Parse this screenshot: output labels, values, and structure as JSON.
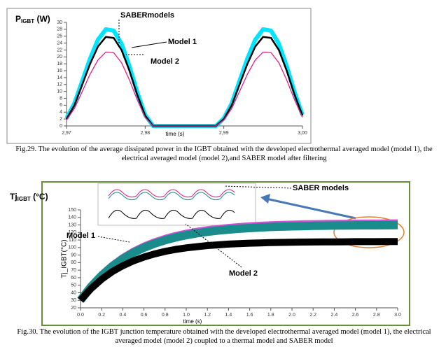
{
  "chart_data": [
    {
      "type": "line",
      "y_title": {
        "symbol": "P",
        "subscript": "IGBT",
        "unit": " (W)"
      },
      "xlabel": "time (s)",
      "x": [
        2.97,
        2.971,
        2.972,
        2.973,
        2.974,
        2.975,
        2.976,
        2.977,
        2.978,
        2.979,
        2.98,
        2.981,
        2.982,
        2.983,
        2.984,
        2.985,
        2.986,
        2.987,
        2.988,
        2.989,
        2.99,
        2.991,
        2.992,
        2.993,
        2.994,
        2.995,
        2.996,
        2.997,
        2.998,
        2.999,
        3.0
      ],
      "series": [
        {
          "name": "SABERmodels",
          "color": "#00e5ff",
          "width": 6,
          "values": [
            2.2,
            6.5,
            13,
            19.5,
            25,
            28,
            27.6,
            23.8,
            17.3,
            9.7,
            3.2,
            0,
            0,
            0,
            0,
            0,
            0,
            0,
            0,
            0,
            2.2,
            6.5,
            13,
            19.5,
            25,
            28,
            27.6,
            23.8,
            17.3,
            9.7,
            3.2
          ]
        },
        {
          "name": "Model 1",
          "color": "#000000",
          "width": 2.5,
          "values": [
            2,
            6,
            12,
            18,
            23,
            25.8,
            25.5,
            22,
            16,
            9,
            3,
            0,
            0,
            0,
            0,
            0,
            0,
            0,
            0,
            0,
            2,
            6,
            12,
            18,
            23,
            25.8,
            25.5,
            22,
            16,
            9,
            3
          ]
        },
        {
          "name": "Model 2",
          "color": "#e0218a",
          "width": 1.3,
          "values": [
            1.7,
            5,
            10,
            15,
            19.1,
            21.4,
            21.2,
            18.3,
            13.3,
            7.5,
            2.5,
            0,
            0,
            0,
            0,
            0,
            0,
            0,
            0,
            0,
            1.7,
            5,
            10,
            15,
            19.1,
            21.4,
            21.2,
            18.3,
            13.3,
            7.5,
            2.5
          ]
        }
      ],
      "xlim": [
        2.97,
        3.0
      ],
      "xticks": [
        {
          "value": 2.97,
          "label": "2,97"
        },
        {
          "value": 2.98,
          "label": "2,98"
        },
        {
          "value": 2.99,
          "label": "2,99"
        },
        {
          "value": 3.0,
          "label": "3,00"
        }
      ],
      "ylim": [
        0,
        30
      ],
      "yticks": [
        0,
        2,
        4,
        6,
        8,
        10,
        12,
        14,
        16,
        18,
        20,
        22,
        24,
        26,
        28,
        30
      ],
      "caption": "Fig.29. The evolution of the average dissipated power in the IGBT obtained with the developed electrothermal averaged model (model 1), the electrical averaged model (model 2),and SABER model after filtering"
    },
    {
      "type": "line",
      "y_title": {
        "symbol": "Tj",
        "subscript": "IGBT",
        "unit": " (°C)"
      },
      "ylabel": "Tj_IGBT(°C)",
      "xlabel": "time (s)",
      "x": [
        0,
        0.1,
        0.2,
        0.3,
        0.4,
        0.5,
        0.6,
        0.7,
        0.8,
        0.9,
        1.0,
        1.1,
        1.2,
        1.3,
        1.4,
        1.5,
        1.6,
        1.7,
        1.8,
        1.9,
        2.0,
        2.1,
        2.2,
        2.3,
        2.4,
        2.5,
        2.6,
        2.7,
        2.8,
        2.9,
        3.0
      ],
      "series": [
        {
          "name": "SABER models",
          "color": "#d64fd6",
          "width": 10,
          "values": [
            30,
            48.7,
            64,
            76.5,
            86.7,
            95.1,
            102,
            107.6,
            112.2,
            116,
            119.1,
            121.6,
            123.7,
            125.3,
            126.7,
            127.9,
            128.8,
            129.6,
            130.2,
            130.7,
            131.1,
            131.5,
            131.7,
            132,
            132.2,
            132.3,
            132.4,
            132.5,
            132.6,
            132.7,
            132.7
          ]
        },
        {
          "name": "Model 1",
          "color": "#1a8c8c",
          "width": 12,
          "values": [
            30,
            48.1,
            63,
            75.1,
            85.1,
            93.2,
            99.9,
            105.3,
            109.8,
            113.5,
            116.5,
            118.9,
            120.9,
            122.6,
            123.9,
            125,
            125.9,
            126.7,
            127.3,
            127.8,
            128.2,
            128.5,
            128.8,
            129,
            129.2,
            129.3,
            129.5,
            129.6,
            129.6,
            129.7,
            129.8
          ]
        },
        {
          "name": "Model 2",
          "color": "#000000",
          "width": 10,
          "values": [
            30,
            45.5,
            58,
            68,
            75.9,
            82.3,
            87.4,
            91.5,
            94.8,
            97.5,
            99.6,
            101.2,
            102.6,
            103.6,
            104.6,
            105.2,
            105.8,
            106.2,
            106.6,
            106.8,
            107.1,
            107.3,
            107.4,
            107.5,
            107.6,
            107.7,
            107.8,
            107.8,
            107.8,
            107.9,
            107.9
          ]
        }
      ],
      "xlim": [
        0,
        3.0
      ],
      "xticks": [
        {
          "value": 0,
          "label": "0.0"
        },
        {
          "value": 0.2,
          "label": "0.2"
        },
        {
          "value": 0.4,
          "label": "0.4"
        },
        {
          "value": 0.6,
          "label": "0.6"
        },
        {
          "value": 0.8,
          "label": "0.8"
        },
        {
          "value": 1,
          "label": "1.0"
        },
        {
          "value": 1.2,
          "label": "1.2"
        },
        {
          "value": 1.4,
          "label": "1.4"
        },
        {
          "value": 1.6,
          "label": "1.6"
        },
        {
          "value": 1.8,
          "label": "1.8"
        },
        {
          "value": 2,
          "label": "2.0"
        },
        {
          "value": 2.2,
          "label": "2.2"
        },
        {
          "value": 2.4,
          "label": "2.4"
        },
        {
          "value": 2.6,
          "label": "2.6"
        },
        {
          "value": 2.8,
          "label": "2.8"
        },
        {
          "value": 3,
          "label": "3.0"
        }
      ],
      "ylim": [
        20,
        150
      ],
      "yticks": [
        20,
        30,
        40,
        50,
        60,
        70,
        80,
        90,
        100,
        110,
        120,
        130,
        140,
        150
      ],
      "caption": "Fig.30. The evolution of the IGBT junction temperature obtained with the developed electrothermal averaged model (model 1), the electrical averaged model (model 2) coupled to a thermal model and SABER model"
    }
  ]
}
